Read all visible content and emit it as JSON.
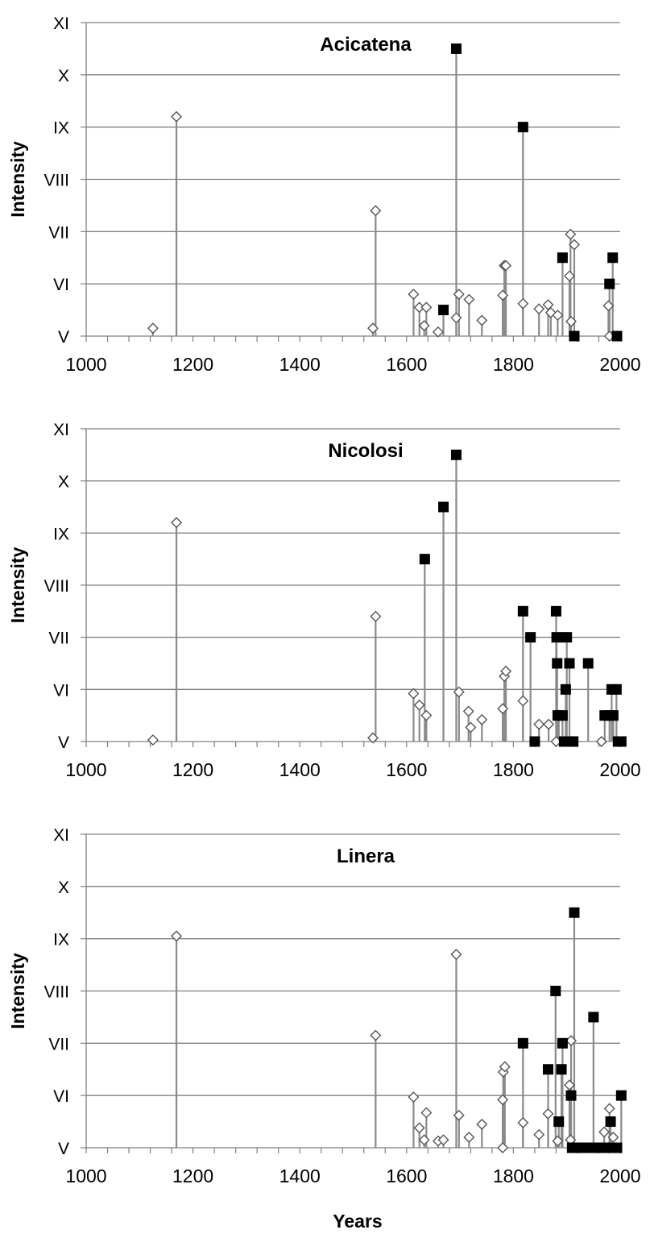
{
  "chart_data": [
    {
      "type": "scatter",
      "title": "Acicatena",
      "ylabel": "Intensity",
      "xlabel": "",
      "xlim": [
        1000,
        2000
      ],
      "ylim": [
        5,
        11
      ],
      "xticks": [
        "1000",
        "1200",
        "1400",
        "1600",
        "1800",
        "2000"
      ],
      "yticks": [
        "V",
        "VI",
        "VII",
        "VIII",
        "IX",
        "X",
        "XI"
      ],
      "grid": true,
      "series": [
        {
          "marker": "open-diamond",
          "points": [
            [
              1125,
              5.15
            ],
            [
              1169,
              9.2
            ],
            [
              1537,
              5.15
            ],
            [
              1542,
              7.4
            ],
            [
              1613,
              5.8
            ],
            [
              1624,
              5.55
            ],
            [
              1633,
              5.2
            ],
            [
              1637,
              5.55
            ],
            [
              1659,
              5.08
            ],
            [
              1693,
              5.35
            ],
            [
              1698,
              5.8
            ],
            [
              1717,
              5.7
            ],
            [
              1741,
              5.3
            ],
            [
              1780,
              5.78
            ],
            [
              1783,
              6.35
            ],
            [
              1786,
              6.35
            ],
            [
              1818,
              5.62
            ],
            [
              1848,
              5.52
            ],
            [
              1865,
              5.6
            ],
            [
              1870,
              5.45
            ],
            [
              1883,
              5.4
            ],
            [
              1905,
              6.15
            ],
            [
              1907,
              6.95
            ],
            [
              1908,
              5.28
            ],
            [
              1914,
              6.75
            ],
            [
              1978,
              5.58
            ],
            [
              1980,
              5.0
            ]
          ]
        },
        {
          "marker": "filled-square",
          "points": [
            [
              1669,
              5.5
            ],
            [
              1693,
              10.5
            ],
            [
              1818,
              9.0
            ],
            [
              1892,
              6.5
            ],
            [
              1914,
              5.0
            ],
            [
              1980,
              6.0
            ],
            [
              1986,
              6.5
            ],
            [
              1994,
              5.0
            ]
          ]
        }
      ]
    },
    {
      "type": "scatter",
      "title": "Nicolosi",
      "ylabel": "Intensity",
      "xlabel": "",
      "xlim": [
        1000,
        2000
      ],
      "ylim": [
        5,
        11
      ],
      "xticks": [
        "1000",
        "1200",
        "1400",
        "1600",
        "1800",
        "2000"
      ],
      "yticks": [
        "V",
        "VI",
        "VII",
        "VIII",
        "IX",
        "X",
        "XI"
      ],
      "grid": true,
      "series": [
        {
          "marker": "open-diamond",
          "points": [
            [
              1125,
              5.03
            ],
            [
              1169,
              9.2
            ],
            [
              1537,
              5.07
            ],
            [
              1542,
              7.4
            ],
            [
              1613,
              5.92
            ],
            [
              1624,
              5.7
            ],
            [
              1637,
              5.5
            ],
            [
              1698,
              5.95
            ],
            [
              1716,
              5.58
            ],
            [
              1720,
              5.27
            ],
            [
              1741,
              5.42
            ],
            [
              1780,
              5.63
            ],
            [
              1783,
              6.25
            ],
            [
              1786,
              6.35
            ],
            [
              1818,
              5.78
            ],
            [
              1848,
              5.33
            ],
            [
              1866,
              5.33
            ],
            [
              1880,
              5.0
            ],
            [
              1885,
              5.5
            ],
            [
              1910,
              5.0
            ],
            [
              1965,
              5.0
            ]
          ]
        },
        {
          "marker": "filled-square",
          "points": [
            [
              1634,
              8.5
            ],
            [
              1669,
              9.5
            ],
            [
              1693,
              10.5
            ],
            [
              1818,
              7.5
            ],
            [
              1832,
              7.0
            ],
            [
              1840,
              5.0
            ],
            [
              1880,
              7.5
            ],
            [
              1881,
              7.0
            ],
            [
              1882,
              6.5
            ],
            [
              1883,
              5.5
            ],
            [
              1892,
              5.5
            ],
            [
              1895,
              5.0
            ],
            [
              1898,
              6.0
            ],
            [
              1900,
              7.0
            ],
            [
              1905,
              6.5
            ],
            [
              1908,
              5.0
            ],
            [
              1912,
              5.0
            ],
            [
              1940,
              6.5
            ],
            [
              1971,
              5.5
            ],
            [
              1980,
              5.5
            ],
            [
              1984,
              6.0
            ],
            [
              1987,
              5.5
            ],
            [
              1993,
              6.0
            ],
            [
              1996,
              5.0
            ],
            [
              2002,
              5.0
            ]
          ]
        }
      ]
    },
    {
      "type": "scatter",
      "title": "Linera",
      "ylabel": "Intensity",
      "xlabel": "Years",
      "xlim": [
        1000,
        2000
      ],
      "ylim": [
        5,
        11
      ],
      "xticks": [
        "1000",
        "1200",
        "1400",
        "1600",
        "1800",
        "2000"
      ],
      "yticks": [
        "V",
        "VI",
        "VII",
        "VIII",
        "IX",
        "X",
        "XI"
      ],
      "grid": true,
      "series": [
        {
          "marker": "open-diamond",
          "points": [
            [
              1169,
              9.05
            ],
            [
              1542,
              7.15
            ],
            [
              1613,
              5.97
            ],
            [
              1624,
              5.38
            ],
            [
              1633,
              5.15
            ],
            [
              1637,
              5.67
            ],
            [
              1659,
              5.13
            ],
            [
              1669,
              5.15
            ],
            [
              1693,
              8.7
            ],
            [
              1698,
              5.62
            ],
            [
              1717,
              5.2
            ],
            [
              1741,
              5.45
            ],
            [
              1780,
              5.0
            ],
            [
              1780,
              5.92
            ],
            [
              1781,
              6.45
            ],
            [
              1784,
              6.55
            ],
            [
              1818,
              5.48
            ],
            [
              1848,
              5.25
            ],
            [
              1865,
              5.65
            ],
            [
              1883,
              5.13
            ],
            [
              1905,
              6.2
            ],
            [
              1907,
              5.15
            ],
            [
              1908,
              7.05
            ],
            [
              1970,
              5.3
            ],
            [
              1978,
              5.0
            ],
            [
              1980,
              5.75
            ],
            [
              1987,
              5.2
            ]
          ]
        },
        {
          "marker": "filled-square",
          "points": [
            [
              1818,
              7.0
            ],
            [
              1865,
              6.5
            ],
            [
              1879,
              8.0
            ],
            [
              1885,
              5.5
            ],
            [
              1890,
              6.5
            ],
            [
              1892,
              7.0
            ],
            [
              1908,
              6.0
            ],
            [
              1910,
              5.0
            ],
            [
              1914,
              9.5
            ],
            [
              1925,
              5.0
            ],
            [
              1935,
              5.0
            ],
            [
              1945,
              5.0
            ],
            [
              1950,
              7.5
            ],
            [
              1960,
              5.0
            ],
            [
              1975,
              5.0
            ],
            [
              1982,
              5.5
            ],
            [
              1986,
              5.0
            ],
            [
              1994,
              5.0
            ],
            [
              2002,
              6.0
            ]
          ]
        }
      ]
    }
  ]
}
